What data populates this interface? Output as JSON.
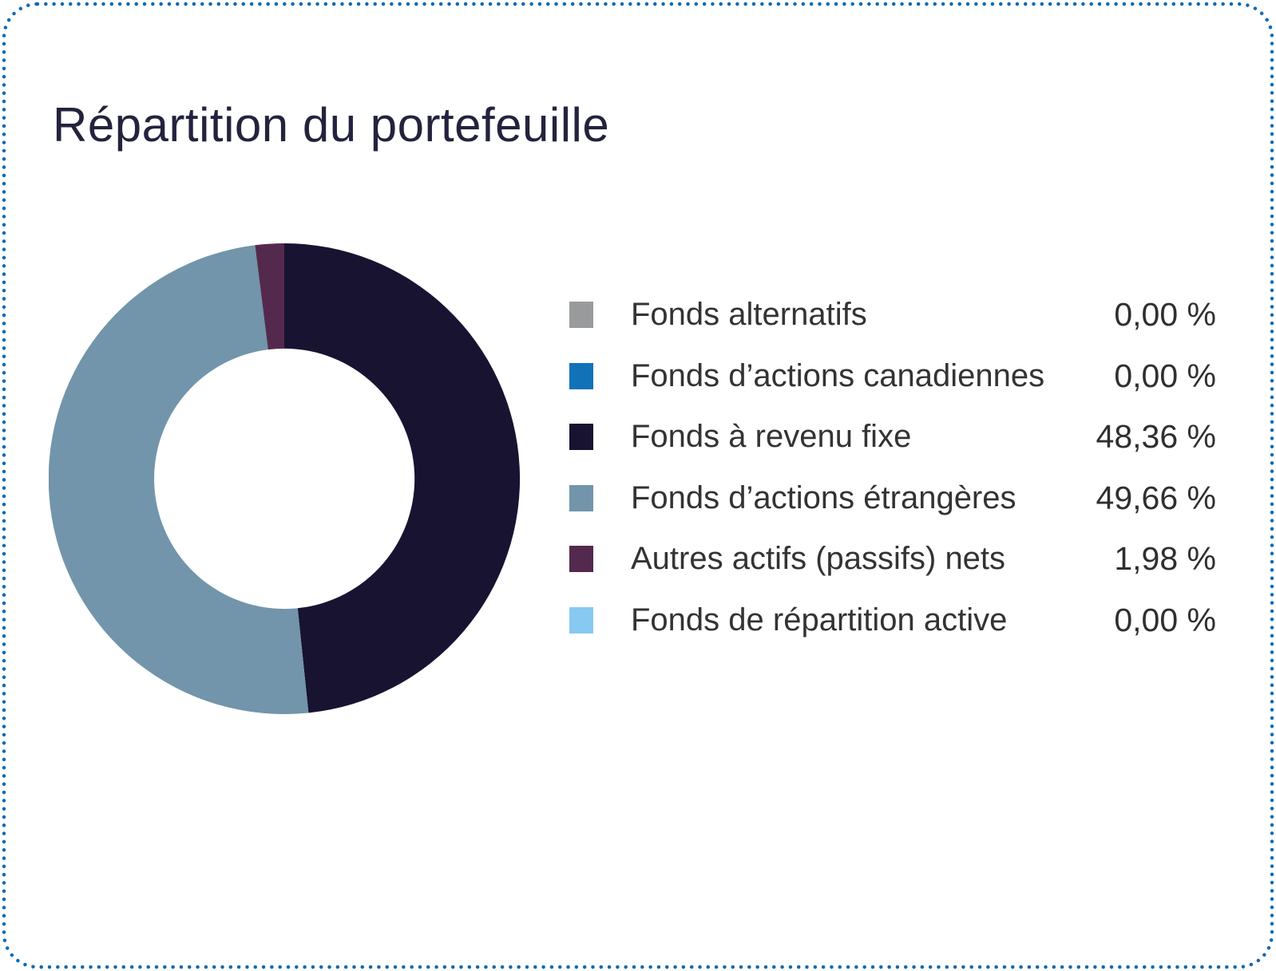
{
  "card": {
    "border_color": "#0f6ab5",
    "background": "#ffffff"
  },
  "chart_data": {
    "type": "pie",
    "variant": "donut",
    "title": "Répartition du portefeuille",
    "legend_position": "right",
    "start_angle_deg": 0,
    "direction": "clockwise",
    "inner_radius_ratio": 0.553,
    "slices": [
      {
        "label": "Fonds alternatifs",
        "value": 0.0,
        "display": "0,00 %",
        "color": "#999a9b"
      },
      {
        "label": "Fonds d’actions canadiennes",
        "value": 0.0,
        "display": "0,00 %",
        "color": "#1272b8"
      },
      {
        "label": "Fonds à revenu fixe",
        "value": 48.36,
        "display": "48,36 %",
        "color": "#171331"
      },
      {
        "label": "Fonds d’actions étrangères",
        "value": 49.66,
        "display": "49,66 %",
        "color": "#7295ab"
      },
      {
        "label": "Autres actifs (passifs) nets",
        "value": 1.98,
        "display": "1,98 %",
        "color": "#532a4d"
      },
      {
        "label": "Fonds de répartition active",
        "value": 0.0,
        "display": "0,00 %",
        "color": "#87c9f0"
      }
    ]
  }
}
